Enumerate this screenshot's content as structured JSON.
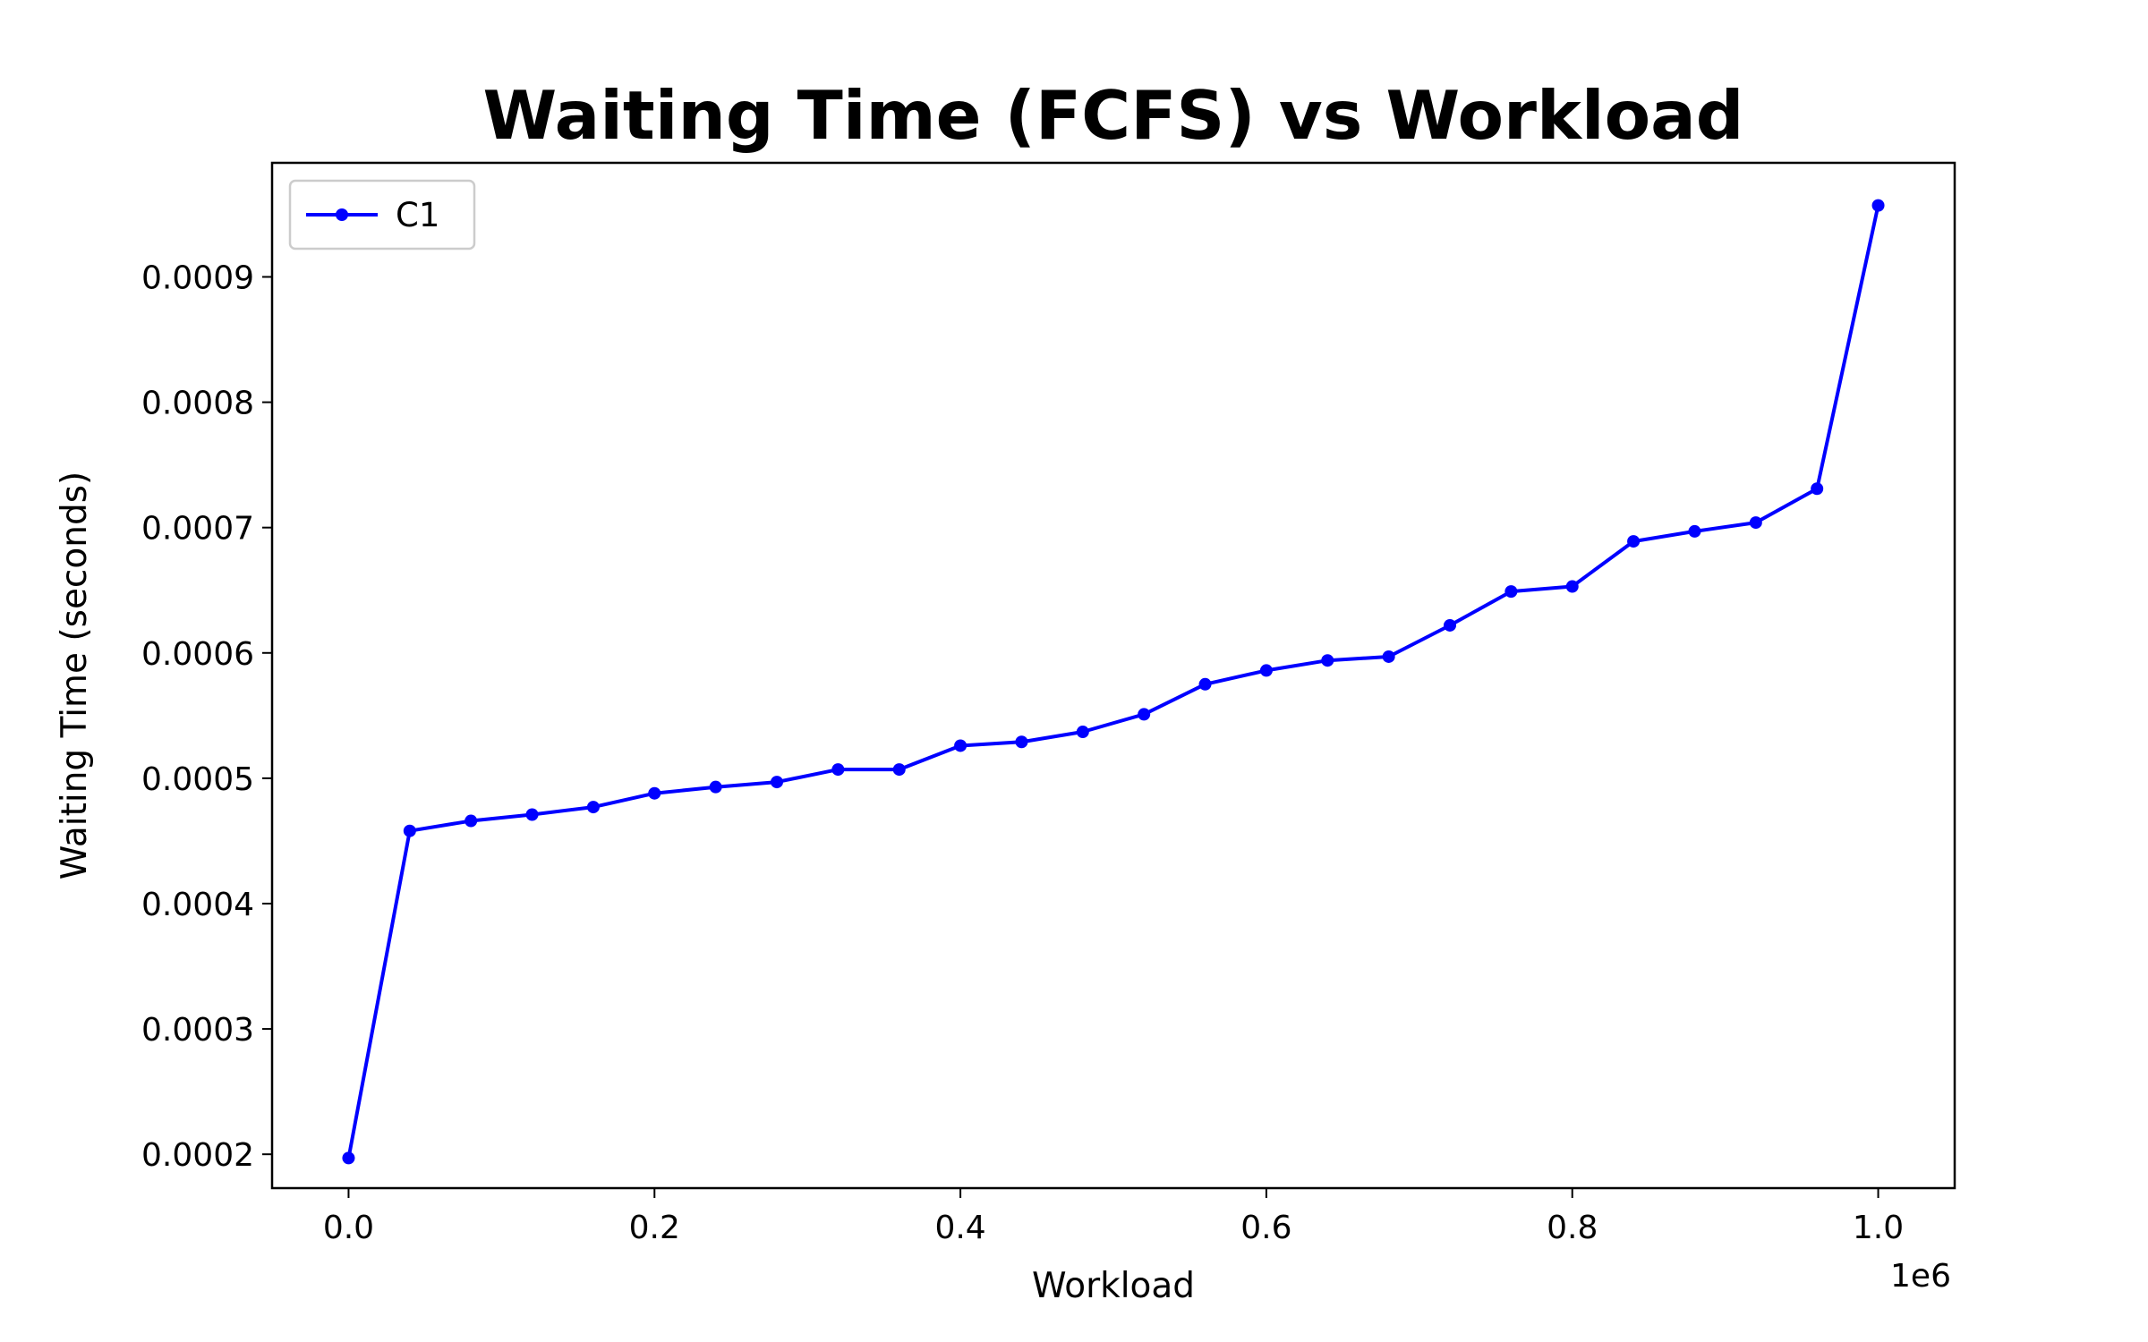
{
  "chart_data": {
    "type": "line",
    "title": "Waiting Time (FCFS) vs Workload",
    "xlabel": "Workload",
    "ylabel": "Waiting Time (seconds)",
    "x_offset_text": "1e6",
    "xlim": [
      -50000,
      1050000
    ],
    "ylim": [
      0.000173,
      0.000991
    ],
    "x_ticks": [
      0,
      200000,
      400000,
      600000,
      800000,
      1000000
    ],
    "x_tick_labels": [
      "0.0",
      "0.2",
      "0.4",
      "0.6",
      "0.8",
      "1.0"
    ],
    "y_ticks": [
      0.0002,
      0.0003,
      0.0004,
      0.0005,
      0.0006,
      0.0007,
      0.0008,
      0.0009
    ],
    "y_tick_labels": [
      "0.0002",
      "0.0003",
      "0.0004",
      "0.0005",
      "0.0006",
      "0.0007",
      "0.0008",
      "0.0009"
    ],
    "grid": false,
    "legend": "top-left",
    "series": [
      {
        "name": "C1",
        "color": "#0000ff",
        "marker": "dot",
        "x": [
          0,
          40000,
          80000,
          120000,
          160000,
          200000,
          240000,
          280000,
          320000,
          360000,
          400000,
          440000,
          480000,
          520000,
          560000,
          600000,
          640000,
          680000,
          720000,
          760000,
          800000,
          840000,
          880000,
          920000,
          960000,
          1000000
        ],
        "values": [
          0.000197,
          0.000458,
          0.000466,
          0.000471,
          0.000477,
          0.000488,
          0.000493,
          0.000497,
          0.000507,
          0.000507,
          0.000526,
          0.000529,
          0.000537,
          0.000551,
          0.000575,
          0.000586,
          0.000594,
          0.000597,
          0.000622,
          0.000649,
          0.000653,
          0.000689,
          0.000697,
          0.000704,
          0.000731,
          0.000957
        ]
      }
    ]
  }
}
